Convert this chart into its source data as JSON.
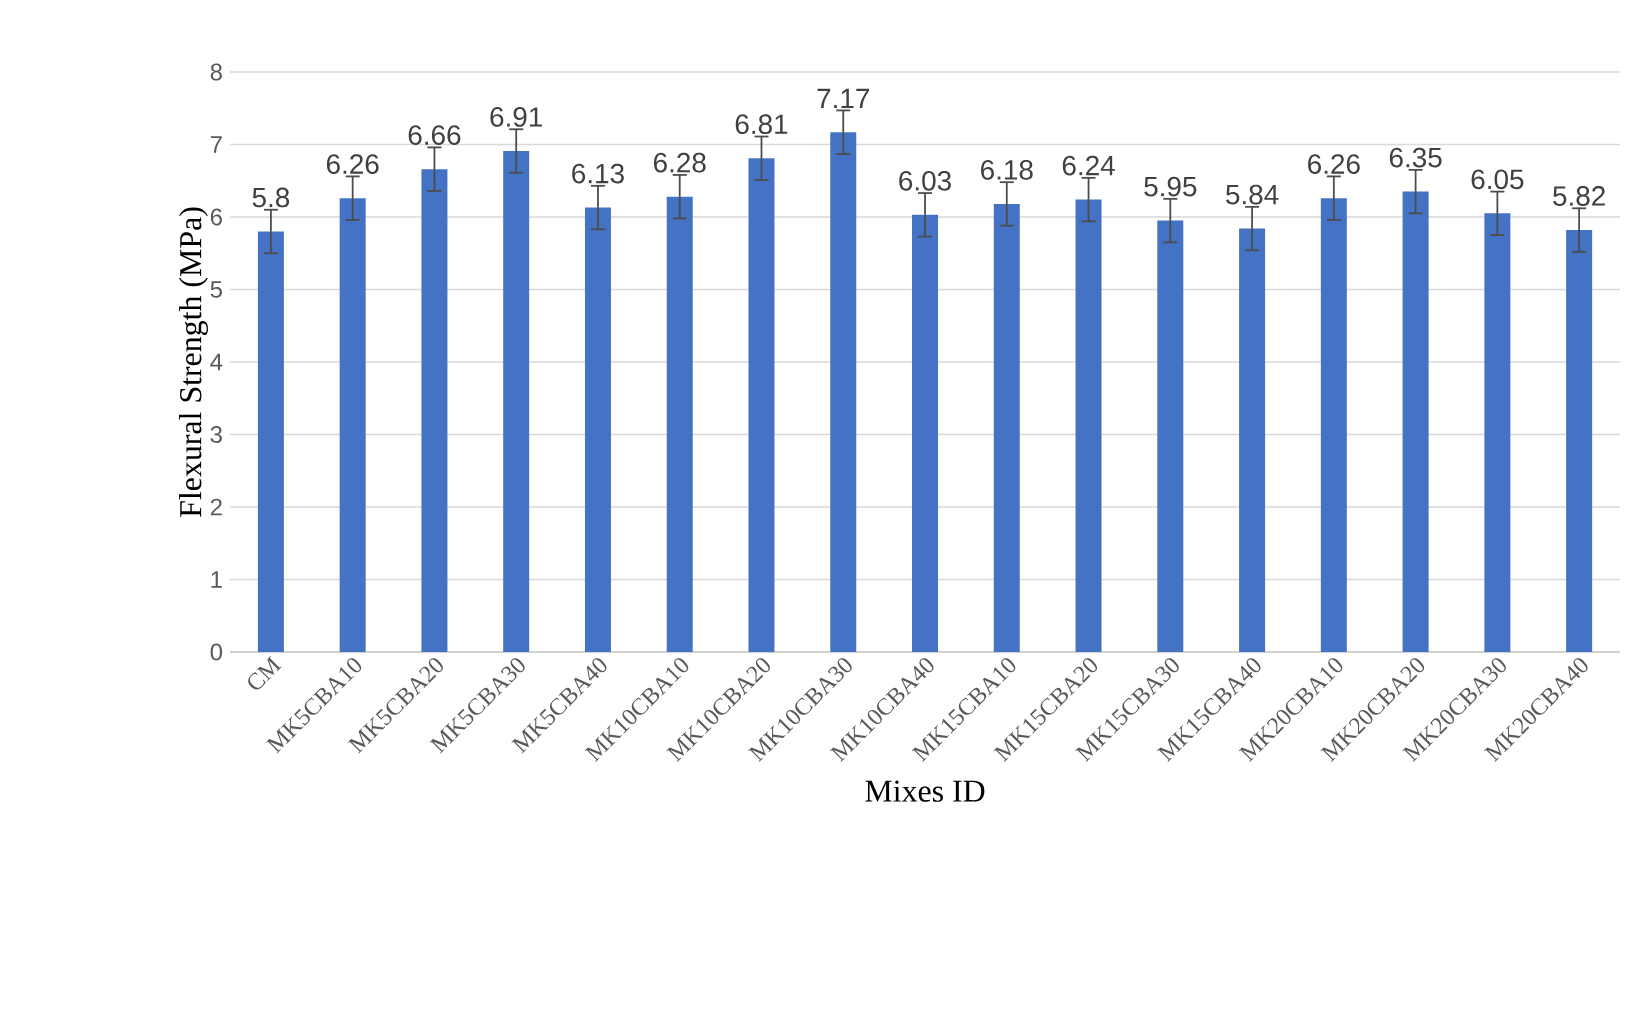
{
  "chart_data": {
    "type": "bar",
    "xlabel": "Mixes ID",
    "ylabel": "Flexural Strength (MPa)",
    "categories": [
      "CM",
      "MK5CBA10",
      "MK5CBA20",
      "MK5CBA30",
      "MK5CBA40",
      "MK10CBA10",
      "MK10CBA20",
      "MK10CBA30",
      "MK10CBA40",
      "MK15CBA10",
      "MK15CBA20",
      "MK15CBA30",
      "MK15CBA40",
      "MK20CBA10",
      "MK20CBA20",
      "MK20CBA30",
      "MK20CBA40"
    ],
    "values": [
      5.8,
      6.26,
      6.66,
      6.91,
      6.13,
      6.28,
      6.81,
      7.17,
      6.03,
      6.18,
      6.24,
      5.95,
      5.84,
      6.26,
      6.35,
      6.05,
      5.82
    ],
    "errors": [
      0.3,
      0.3,
      0.3,
      0.3,
      0.3,
      0.3,
      0.3,
      0.3,
      0.3,
      0.3,
      0.3,
      0.3,
      0.3,
      0.3,
      0.3,
      0.3,
      0.3
    ],
    "color": "#4472c4",
    "ylim": [
      0,
      8
    ],
    "yticks": [
      0,
      1,
      2,
      3,
      4,
      5,
      6,
      7,
      8
    ],
    "grid": "y",
    "data_labels": true
  }
}
